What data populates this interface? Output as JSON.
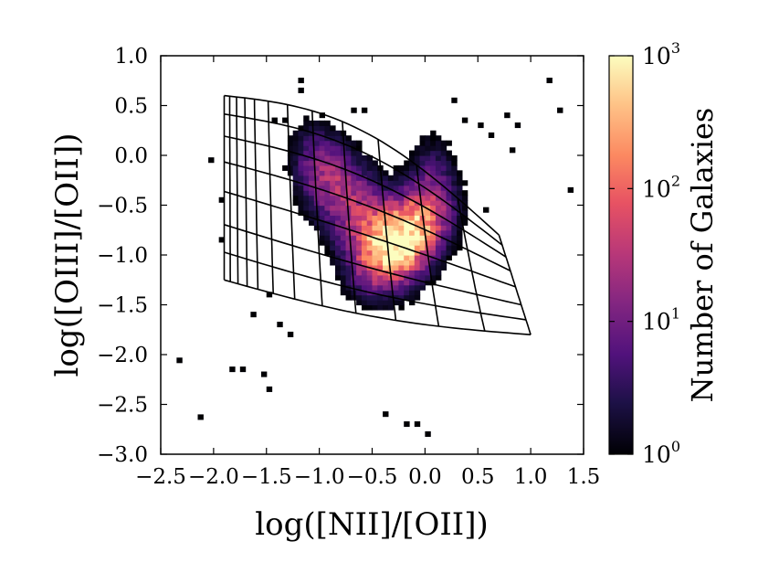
{
  "chart_data": {
    "type": "heatmap",
    "title": "",
    "xlabel": "log([NII]/[OII])",
    "ylabel": "log([OIII]/[OII])",
    "xlim": [
      -2.5,
      1.5
    ],
    "ylim": [
      -3.0,
      1.0
    ],
    "xticks": [
      -2.5,
      -2.0,
      -1.5,
      -1.0,
      -0.5,
      0.0,
      0.5,
      1.0,
      1.5
    ],
    "xtick_labels": [
      "−2.5",
      "−2.0",
      "−1.5",
      "−1.0",
      "−0.5",
      "0.0",
      "0.5",
      "1.0",
      "1.5"
    ],
    "yticks": [
      1.0,
      0.5,
      0.0,
      -0.5,
      -1.0,
      -1.5,
      -2.0,
      -2.5,
      -3.0
    ],
    "ytick_labels": [
      "1.0",
      "0.5",
      "0.0",
      "−0.5",
      "−1.0",
      "−1.5",
      "−2.0",
      "−2.5",
      "−3.0"
    ],
    "bin_size": 0.05,
    "density_peak": {
      "x": -0.2,
      "y": -0.85,
      "count": 1000
    },
    "colorbar": {
      "label": "Number of Galaxies",
      "scale": "log",
      "range": [
        1,
        1000
      ],
      "ticks": [
        {
          "base": "10",
          "exp": "0",
          "value": 1
        },
        {
          "base": "10",
          "exp": "1",
          "value": 10
        },
        {
          "base": "10",
          "exp": "2",
          "value": 100
        },
        {
          "base": "10",
          "exp": "3",
          "value": 1000
        }
      ],
      "colormap": "magma"
    },
    "outlier_bins": [
      [
        -2.35,
        -2.08
      ],
      [
        -2.15,
        -2.65
      ],
      [
        -2.05,
        -0.07
      ],
      [
        -1.95,
        -0.47
      ],
      [
        -1.95,
        -0.87
      ],
      [
        -1.85,
        -2.17
      ],
      [
        -1.75,
        -2.17
      ],
      [
        -1.65,
        -1.62
      ],
      [
        -1.55,
        -2.22
      ],
      [
        -1.5,
        -1.42
      ],
      [
        -1.5,
        -2.37
      ],
      [
        -1.4,
        -1.72
      ],
      [
        -1.3,
        -1.82
      ],
      [
        -1.2,
        0.73
      ],
      [
        -1.2,
        0.63
      ],
      [
        -1.45,
        0.33
      ],
      [
        -1.35,
        0.33
      ],
      [
        -1.0,
        0.38
      ],
      [
        -0.7,
        0.43
      ],
      [
        -0.6,
        0.43
      ],
      [
        0.25,
        0.53
      ],
      [
        0.35,
        0.33
      ],
      [
        0.5,
        0.28
      ],
      [
        0.6,
        0.18
      ],
      [
        0.75,
        0.38
      ],
      [
        0.85,
        0.28
      ],
      [
        0.8,
        0.03
      ],
      [
        1.15,
        0.73
      ],
      [
        1.25,
        0.43
      ],
      [
        1.35,
        -0.37
      ],
      [
        0.55,
        -0.57
      ],
      [
        -0.2,
        -2.72
      ],
      [
        -0.4,
        -2.62
      ],
      [
        -0.1,
        -2.72
      ],
      [
        0.0,
        -2.82
      ]
    ],
    "model_grid": {
      "description": "photoionization model grid (black lines)",
      "corners": {
        "top_left": [
          -1.9,
          0.6
        ],
        "bottom_left": [
          -1.9,
          -1.25
        ],
        "top_right": [
          0.7,
          -0.8
        ],
        "bottom_right": [
          1.0,
          -1.8
        ]
      }
    }
  }
}
